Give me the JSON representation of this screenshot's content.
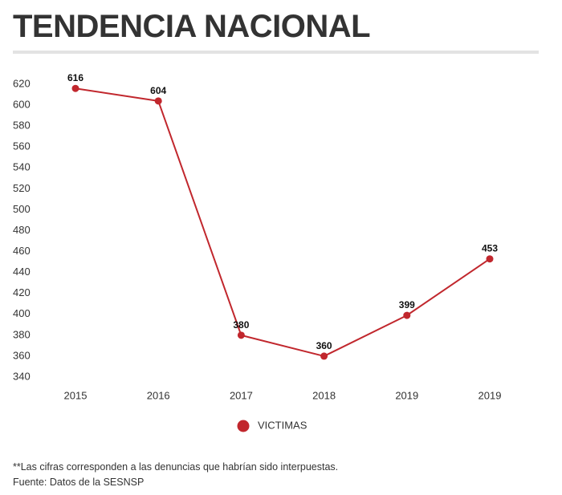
{
  "header": {
    "title": "TENDENCIA NACIONAL"
  },
  "colors": {
    "series": "#c1272d",
    "rule": "#e3e3e3",
    "text": "#333333"
  },
  "chart_data": {
    "type": "line",
    "title": "TENDENCIA NACIONAL",
    "xlabel": "",
    "ylabel": "",
    "categories": [
      "2015",
      "2016",
      "2017",
      "2018",
      "2019",
      "2019"
    ],
    "series": [
      {
        "name": "VICTIMAS",
        "values": [
          616,
          604,
          380,
          360,
          399,
          453
        ],
        "labels": [
          "616",
          "604",
          "380",
          "360",
          "399",
          "453"
        ]
      }
    ],
    "ylim": [
      340,
      620
    ],
    "yticks": [
      "340",
      "360",
      "380",
      "400",
      "420",
      "440",
      "460",
      "480",
      "500",
      "520",
      "540",
      "560",
      "580",
      "600",
      "620"
    ],
    "grid": false,
    "legend": "bottom-center"
  },
  "footer": {
    "note": "**Las cifras corresponden a las denuncias que habrían sido interpuestas.",
    "source": "Fuente: Datos de la SESNSP"
  }
}
